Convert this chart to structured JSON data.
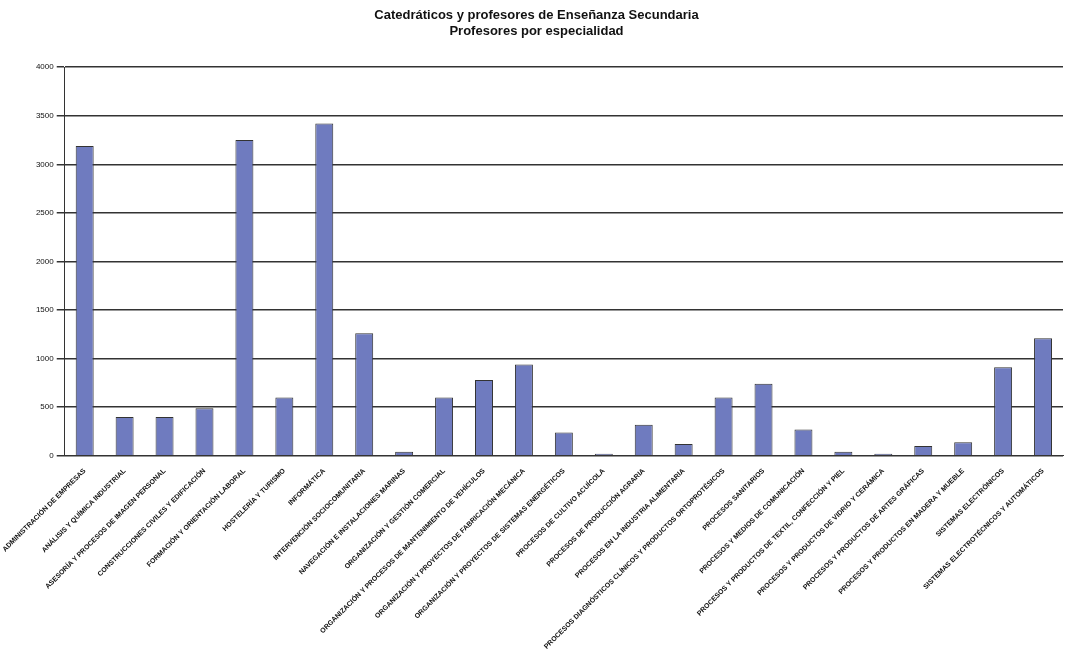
{
  "chart_data": {
    "type": "bar",
    "title": "Catedráticos y profesores de Enseñanza Secundaria",
    "subtitle": "Profesores por especialidad",
    "categories": [
      "ADMINISTRACIÓN DE EMPRESAS",
      "ANÁLISIS Y QUÍMICA INDUSTRIAL",
      "ASESORÍA Y PROCESOS DE IMAGEN PERSONAL",
      "CONSTRUCCIONES CIVILES Y EDIFICACIÓN",
      "FORMACIÓN Y ORIENTACIÓN LABORAL",
      "HOSTELERÍA Y TURISMO",
      "INFORMÁTICA",
      "INTERVENCIÓN SOCIOCOMUNITARIA",
      "NAVEGACIÓN E INSTALACIONES MARINAS",
      "ORGANIZACIÓN Y GESTIÓN COMERCIAL",
      "ORGANIZACIÓN Y PROCESOS DE MANTENIMIENTO DE VEHÍCULOS",
      "ORGANIZACIÓN Y PROYECTOS DE FABRICACIÓN MECÁNICA",
      "ORGANIZACIÓN Y PROYECTOS DE SISTEMAS ENERGÉTICOS",
      "PROCESOS DE CULTIVO ACUÍCOLA",
      "PROCESOS DE PRODUCCIÓN AGRARIA",
      "PROCESOS EN LA INDUSTRIA ALIMENTARIA",
      "PROCESOS DIAGNÓSTICOS CLÍNICOS Y PRODUCTOS ORTOPROTÉSICOS",
      "PROCESOS SANITARIOS",
      "PROCESOS Y MEDIOS DE COMUNICACIÓN",
      "PROCESOS Y PRODUCTOS DE TEXTIL, CONFECCIÓN Y PIEL",
      "PROCESOS Y PRODUCTOS DE VIDRIO Y CERÁMICA",
      "PROCESOS Y PRODUCTOS DE ARTES GRÁFICAS",
      "PROCESOS Y PRODUCTOS EN MADERA Y MUEBLE",
      "SISTEMAS ELECTRÓNICOS",
      "SISTEMAS ELECTROTÉCNICOS Y AUTOMÁTICOS"
    ],
    "values": [
      3190,
      400,
      400,
      490,
      3250,
      600,
      3420,
      1260,
      40,
      600,
      780,
      940,
      240,
      20,
      320,
      120,
      600,
      740,
      270,
      40,
      20,
      100,
      140,
      910,
      1210
    ],
    "color": "#6f7bbf",
    "ylim": [
      0,
      4000
    ],
    "yticks": [
      0,
      500,
      1000,
      1500,
      2000,
      2500,
      3000,
      3500,
      4000
    ],
    "grid": "y"
  }
}
